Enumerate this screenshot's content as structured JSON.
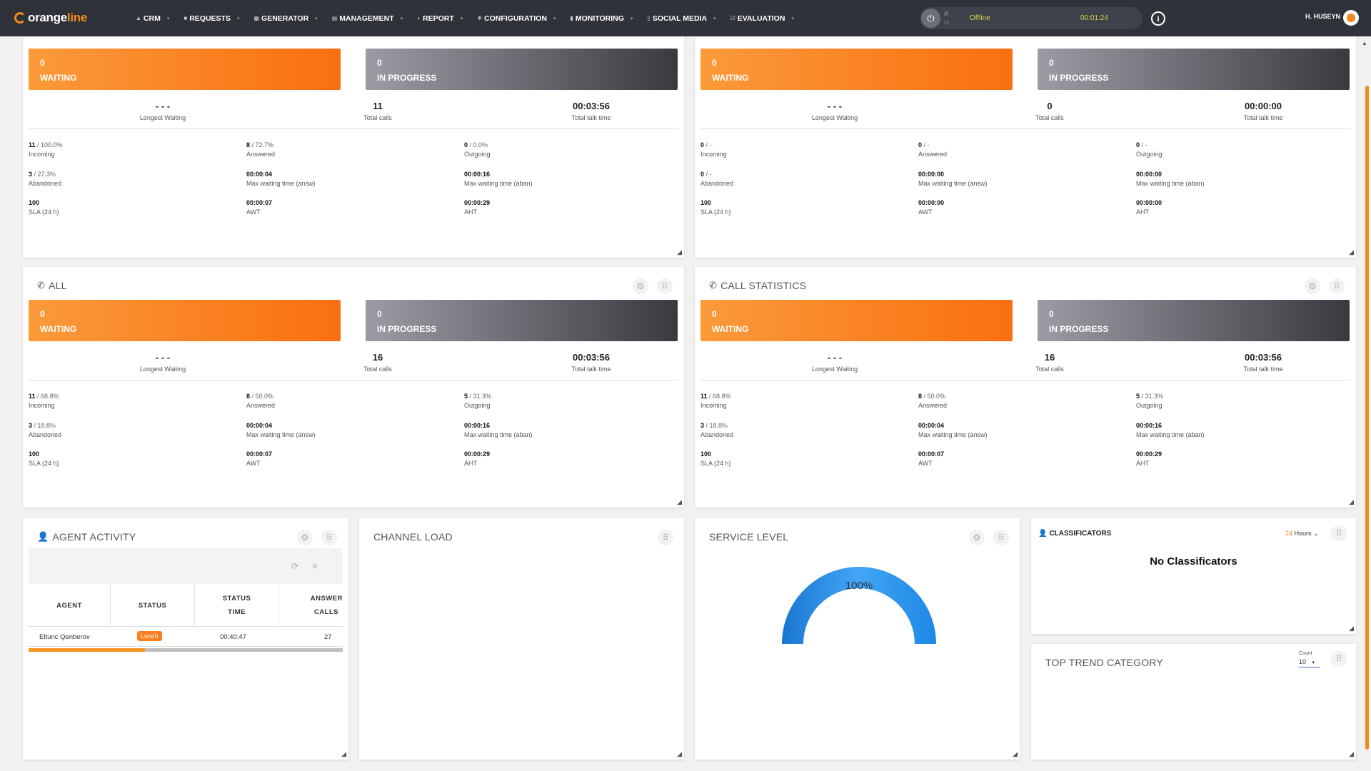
{
  "app": {
    "logo_pre": "orange",
    "logo_post": "line"
  },
  "nav": [
    {
      "label": "CRM",
      "icon": "person-icon"
    },
    {
      "label": "REQUESTS",
      "icon": "folder-icon"
    },
    {
      "label": "GENERATOR",
      "icon": "grid-icon"
    },
    {
      "label": "MANAGEMENT",
      "icon": "list-icon"
    },
    {
      "label": "REPORT",
      "icon": "report-icon"
    },
    {
      "label": "CONFIGURATION",
      "icon": "gear-icon"
    },
    {
      "label": "MONITORING",
      "icon": "bar-chart-icon"
    },
    {
      "label": "SOCIAL MEDIA",
      "icon": "phone-icon"
    },
    {
      "label": "EVALUATION",
      "icon": "check-icon"
    }
  ],
  "phone": {
    "status": "Offline",
    "timer": "00:01:24"
  },
  "user": {
    "name": "H. HUSEYN"
  },
  "colors": {
    "accent": "#f28a1d",
    "topbar": "#2f3238",
    "waiting": "#fa6f10",
    "in_progress": "#3a3940",
    "gauge": "#1e88e5"
  },
  "labels": {
    "waiting": "WAITING",
    "in_progress": "IN PROGRESS",
    "longest_waiting": "Longest Waiting",
    "total_calls": "Total calls",
    "total_talk_time": "Total talk time",
    "incoming": "Incoming",
    "answered": "Answered",
    "outgoing": "Outgoing",
    "abandoned": "Abandoned",
    "max_wait_answ": "Max waiting time (answ)",
    "max_wait_aban": "Max waiting time (aban)",
    "sla": "SLA (24 h)",
    "awt": "AWT",
    "aht": "AHT"
  },
  "panels": {
    "top_left": {
      "waiting": "0",
      "in_progress": "0",
      "longest_waiting": "- - -",
      "total_calls": "11",
      "total_talk_time": "00:03:56",
      "incoming": "11",
      "incoming_pct": " / 100.0%",
      "answered": "8",
      "answered_pct": " / 72.7%",
      "outgoing": "0",
      "outgoing_pct": " / 0.0%",
      "abandoned": "3",
      "abandoned_pct": " / 27.3%",
      "max_wait_answ": "00:00:04",
      "max_wait_aban": "00:00:16",
      "sla": "100",
      "awt": "00:00:07",
      "aht": "00:00:29"
    },
    "top_right": {
      "waiting": "0",
      "in_progress": "0",
      "longest_waiting": "- - -",
      "total_calls": "0",
      "total_talk_time": "00:00:00",
      "incoming": "0",
      "incoming_pct": " / -",
      "answered": "0",
      "answered_pct": " / -",
      "outgoing": "0",
      "outgoing_pct": " / -",
      "abandoned": "0",
      "abandoned_pct": " / -",
      "max_wait_answ": "00:00:00",
      "max_wait_aban": "00:00:00",
      "sla": "100",
      "awt": "00:00:00",
      "aht": "00:00:00"
    },
    "all": {
      "title": "ALL",
      "waiting": "0",
      "in_progress": "0",
      "longest_waiting": "- - -",
      "total_calls": "16",
      "total_talk_time": "00:03:56",
      "incoming": "11",
      "incoming_pct": " / 68.8%",
      "answered": "8",
      "answered_pct": " / 50.0%",
      "outgoing": "5",
      "outgoing_pct": " / 31.3%",
      "abandoned": "3",
      "abandoned_pct": " / 18.8%",
      "max_wait_answ": "00:00:04",
      "max_wait_aban": "00:00:16",
      "sla": "100",
      "awt": "00:00:07",
      "aht": "00:00:29"
    },
    "call_stats": {
      "title": "CALL STATISTICS",
      "waiting": "0",
      "in_progress": "0",
      "longest_waiting": "- - -",
      "total_calls": "16",
      "total_talk_time": "00:03:56",
      "incoming": "11",
      "incoming_pct": " / 68.8%",
      "answered": "8",
      "answered_pct": " / 50.0%",
      "outgoing": "5",
      "outgoing_pct": " / 31.3%",
      "abandoned": "3",
      "abandoned_pct": " / 18.8%",
      "max_wait_answ": "00:00:04",
      "max_wait_aban": "00:00:16",
      "sla": "100",
      "awt": "00:00:07",
      "aht": "00:00:29"
    }
  },
  "agent_activity": {
    "title": "AGENT ACTIVITY",
    "headers": {
      "agent": "AGENT",
      "status": "STATUS",
      "status_time_1": "STATUS",
      "status_time_2": "TIME",
      "answer_1": "ANSWER",
      "answer_2": "CALLS"
    },
    "rows": [
      {
        "agent": "Eltunc Qenberov",
        "status": "Lunch",
        "time": "00:40:47",
        "calls": "27"
      }
    ],
    "scroll_fraction": 0.37
  },
  "channel_load": {
    "title": "CHANNEL LOAD"
  },
  "service_level": {
    "title": "SERVICE LEVEL",
    "value": "100%",
    "fraction": 1.0
  },
  "classificators": {
    "title": "CLASSIFICATORS",
    "range_num": "24",
    "range_unit": "Hours",
    "empty": "No Classificators"
  },
  "top_trend": {
    "title": "TOP TREND CATEGORY",
    "count_label": "Count",
    "count_value": "10"
  }
}
